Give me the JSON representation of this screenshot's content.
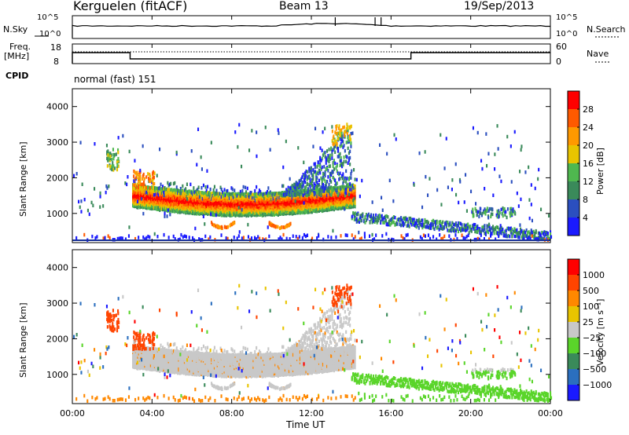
{
  "header": {
    "station": "Kerguelen (fitACF)",
    "beam": "Beam 13",
    "date": "19/Sep/2013"
  },
  "noise_panel": {
    "left_label": "N.Sky",
    "right_label": "N.Search",
    "left_ticks": [
      "10^5",
      "10^0"
    ],
    "right_ticks": [
      "10^5",
      "10^0"
    ]
  },
  "freq_panel": {
    "left_label_line1": "Freq.",
    "left_label_line2": "[MHz]",
    "right_label": "Nave",
    "left_ticks": [
      "18",
      "8"
    ],
    "right_ticks": [
      "60",
      "0"
    ],
    "cpid_label": "CPID",
    "cpid_text": "normal (fast) 151"
  },
  "colors": {
    "power_scale": [
      "#1a1aff",
      "#2b4fbf",
      "#3a8a5a",
      "#4fb84f",
      "#e8c400",
      "#ff9900",
      "#ff5a00",
      "#ff0000"
    ],
    "velocity_scale": [
      "#1a1aff",
      "#2b6fbf",
      "#3a8a5a",
      "#5ad52a",
      "#c8c8c8",
      "#e8c400",
      "#ff8800",
      "#ff4400",
      "#ff0000"
    ]
  },
  "chart_data": [
    {
      "type": "heatmap",
      "name": "power",
      "ylabel": "Slant Range [km]",
      "xlabel": "Time UT",
      "xlim": [
        "00:00",
        "24:00"
      ],
      "ylim": [
        180,
        4500
      ],
      "x_ticks": [
        "00:00",
        "04:00",
        "08:00",
        "12:00",
        "16:00",
        "20:00",
        "00:00"
      ],
      "y_ticks": [
        "1000",
        "2000",
        "3000",
        "4000"
      ],
      "colorbar_label": "Power [dB]",
      "colorbar_ticks": [
        "4",
        "8",
        "12",
        "16",
        "20",
        "24",
        "28"
      ]
    },
    {
      "type": "heatmap",
      "name": "velocity",
      "ylabel": "Slant Range [km]",
      "xlabel": "Time UT",
      "xlim": [
        "00:00",
        "24:00"
      ],
      "ylim": [
        180,
        4500
      ],
      "x_ticks": [
        "00:00",
        "04:00",
        "08:00",
        "12:00",
        "16:00",
        "20:00",
        "00:00"
      ],
      "y_ticks": [
        "1000",
        "2000",
        "3000",
        "4000"
      ],
      "colorbar_label": "Velocity [m s⁻¹]",
      "colorbar_ticks": [
        "1000",
        "500",
        "100",
        "25",
        "−25",
        "−100",
        "−500",
        "−1000"
      ]
    }
  ],
  "x_axis_title": "Time UT"
}
